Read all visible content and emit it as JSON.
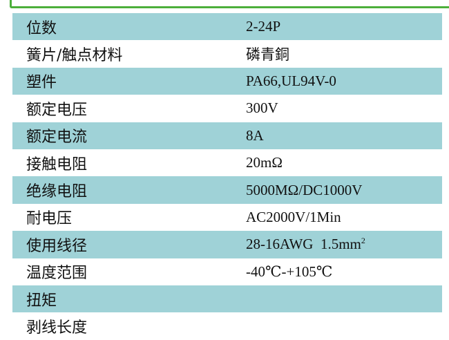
{
  "colors": {
    "row_highlight": "#9fd2d7",
    "frame_border": "#4caf3a"
  },
  "rows": [
    {
      "label": "位数",
      "value": "2-24P"
    },
    {
      "label": "簧片/触点材料",
      "value": "磷青銅"
    },
    {
      "label": "塑件",
      "value": "PA66,UL94V-0"
    },
    {
      "label": "额定电压",
      "value": "300V"
    },
    {
      "label": "额定电流",
      "value": "8A"
    },
    {
      "label": "接触电阻",
      "value": "20mΩ"
    },
    {
      "label": "绝缘电阻",
      "value": "5000MΩ/DC1000V"
    },
    {
      "label": "耐电压",
      "value": "AC2000V/1Min"
    },
    {
      "label": "使用线径",
      "value": "28-16AWG  1.5mm",
      "value_sup": "2"
    },
    {
      "label": "温度范围",
      "value": "-40℃-+105℃"
    },
    {
      "label": "扭矩",
      "value": ""
    },
    {
      "label": "剥线长度",
      "value": ""
    }
  ]
}
